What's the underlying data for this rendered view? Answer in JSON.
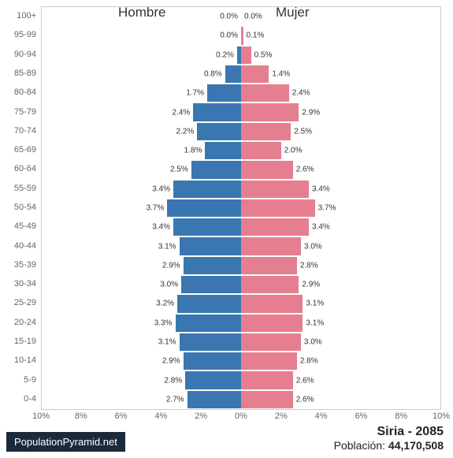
{
  "chart": {
    "type": "population-pyramid",
    "male_label": "Hombre",
    "female_label": "Mujer",
    "male_color": "#3a77b0",
    "female_color": "#e57f8f",
    "background_color": "#ffffff",
    "border_color": "#cccccc",
    "axis_text_color": "#666666",
    "value_text_color": "#333333",
    "header_fontsize": 17,
    "age_label_fontsize": 11,
    "value_label_fontsize": 10,
    "xtick_fontsize": 11,
    "x_max_pct": 10,
    "x_ticks": [
      "10%",
      "8%",
      "6%",
      "4%",
      "2%",
      "0%",
      "2%",
      "4%",
      "6%",
      "8%",
      "10%"
    ],
    "age_groups": [
      "100+",
      "95-99",
      "90-94",
      "85-89",
      "80-84",
      "75-79",
      "70-74",
      "65-69",
      "60-64",
      "55-59",
      "50-54",
      "45-49",
      "40-44",
      "35-39",
      "30-34",
      "25-29",
      "20-24",
      "15-19",
      "10-14",
      "5-9",
      "0-4"
    ],
    "male_pct": [
      0.0,
      0.0,
      0.2,
      0.8,
      1.7,
      2.4,
      2.2,
      1.8,
      2.5,
      3.4,
      3.7,
      3.4,
      3.1,
      2.9,
      3.0,
      3.2,
      3.3,
      3.1,
      2.9,
      2.8,
      2.7
    ],
    "female_pct": [
      0.0,
      0.1,
      0.5,
      1.4,
      2.4,
      2.9,
      2.5,
      2.0,
      2.6,
      3.4,
      3.7,
      3.4,
      3.0,
      2.8,
      2.9,
      3.1,
      3.1,
      3.0,
      2.8,
      2.6,
      2.6
    ]
  },
  "footer": {
    "badge": "PopulationPyramid.net",
    "badge_bg": "#1a2a3a",
    "badge_text_color": "#ffffff",
    "country_year": "Siria - 2085",
    "population_label": "Población: ",
    "population_value": "44,170,508"
  }
}
